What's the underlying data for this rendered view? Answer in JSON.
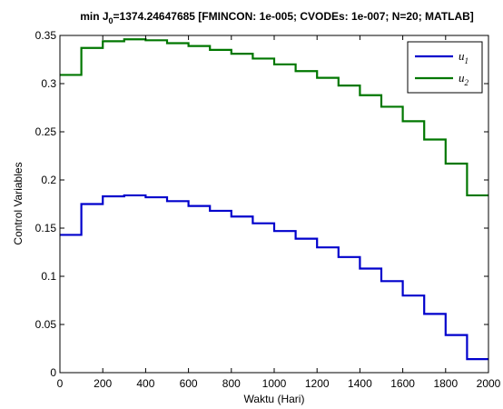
{
  "chart_data": {
    "type": "line",
    "title_prefix": "min J",
    "title_sub": "0",
    "title_rest": "=1374.24647685 [FMINCON: 1e-005; CVODEs: 1e-007; N=20; MATLAB]",
    "xlabel": "Waktu (Hari)",
    "ylabel": "Control Variables",
    "xlim": [
      0,
      2000
    ],
    "ylim": [
      0,
      0.35
    ],
    "xticks": [
      0,
      200,
      400,
      600,
      800,
      1000,
      1200,
      1400,
      1600,
      1800,
      2000
    ],
    "xtick_labels": [
      "0",
      "200",
      "400",
      "600",
      "800",
      "1000",
      "1200",
      "1400",
      "1600",
      "1800",
      "2000"
    ],
    "yticks": [
      0,
      0.05,
      0.1,
      0.15,
      0.2,
      0.25,
      0.3,
      0.35
    ],
    "ytick_labels": [
      "0",
      "0.05",
      "0.1",
      "0.15",
      "0.2",
      "0.25",
      "0.3",
      "0.35"
    ],
    "grid": false,
    "legend_position": "top-right",
    "step_starts": [
      0,
      100,
      200,
      300,
      400,
      500,
      600,
      700,
      800,
      900,
      1000,
      1100,
      1200,
      1300,
      1400,
      1500,
      1600,
      1700,
      1800,
      1900
    ],
    "x_end": 2000,
    "series": [
      {
        "name": "u",
        "name_sub": "1",
        "color": "#0000cc",
        "values": [
          0.143,
          0.175,
          0.183,
          0.184,
          0.182,
          0.178,
          0.173,
          0.168,
          0.162,
          0.155,
          0.147,
          0.139,
          0.13,
          0.12,
          0.108,
          0.095,
          0.08,
          0.061,
          0.039,
          0.014
        ]
      },
      {
        "name": "u",
        "name_sub": "2",
        "color": "#007700",
        "values": [
          0.309,
          0.337,
          0.344,
          0.346,
          0.345,
          0.342,
          0.339,
          0.335,
          0.331,
          0.326,
          0.32,
          0.313,
          0.306,
          0.298,
          0.288,
          0.276,
          0.261,
          0.242,
          0.217,
          0.184
        ]
      }
    ]
  }
}
